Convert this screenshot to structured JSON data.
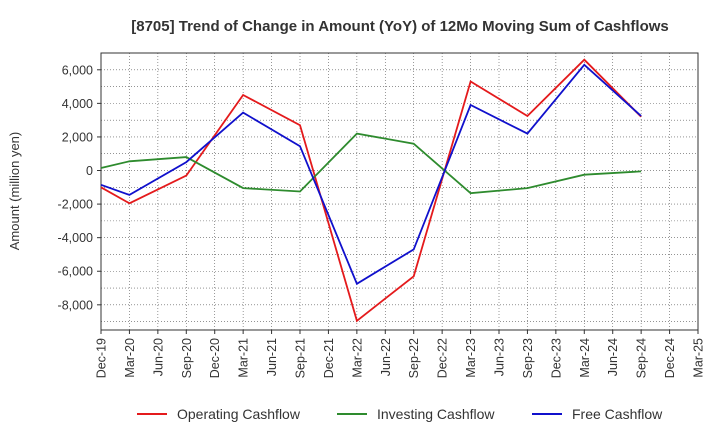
{
  "chart_data": {
    "type": "line",
    "title": "[8705]  Trend of Change in Amount (YoY) of 12Mo Moving Sum of Cashflows",
    "ylabel": "Amount (million yen)",
    "xlabel": "",
    "ylim": [
      -9500,
      7000
    ],
    "yticks": [
      6000,
      4000,
      2000,
      0,
      -2000,
      -4000,
      -6000,
      -8000
    ],
    "ytick_labels": [
      "6,000",
      "4,000",
      "2,000",
      "0",
      "-2,000",
      "-4,000",
      "-6,000",
      "-8,000"
    ],
    "categories": [
      "Dec-19",
      "Mar-20",
      "Jun-20",
      "Sep-20",
      "Dec-20",
      "Mar-21",
      "Jun-21",
      "Sep-21",
      "Dec-21",
      "Mar-22",
      "Jun-22",
      "Sep-22",
      "Dec-22",
      "Mar-23",
      "Jun-23",
      "Sep-23",
      "Dec-23",
      "Mar-24",
      "Jun-24",
      "Sep-24",
      "Dec-24",
      "Mar-25"
    ],
    "grid": true,
    "legend_position": "bottom",
    "series": [
      {
        "name": "Operating Cashflow",
        "color": "#e41a1c",
        "values": [
          -1000,
          -1950,
          null,
          -300,
          null,
          4500,
          null,
          2700,
          null,
          -8950,
          null,
          -6300,
          null,
          5300,
          null,
          3250,
          null,
          6600,
          null,
          3200,
          null,
          null
        ]
      },
      {
        "name": "Investing Cashflow",
        "color": "#2e8b2e",
        "values": [
          150,
          550,
          null,
          800,
          null,
          -1050,
          null,
          -1250,
          null,
          2200,
          null,
          1600,
          null,
          -1350,
          null,
          -1050,
          null,
          -250,
          null,
          -50,
          null,
          null
        ]
      },
      {
        "name": "Free Cashflow",
        "color": "#1010cc",
        "values": [
          -850,
          -1450,
          null,
          500,
          null,
          3450,
          null,
          1450,
          null,
          -6750,
          null,
          -4700,
          null,
          3900,
          null,
          2200,
          null,
          6300,
          null,
          3250,
          null,
          null
        ]
      }
    ]
  }
}
